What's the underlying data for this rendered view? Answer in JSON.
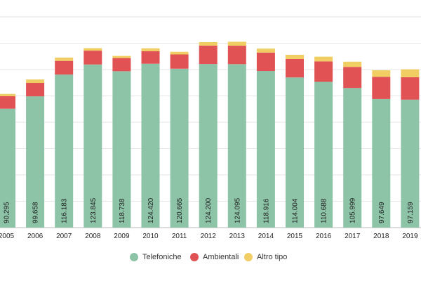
{
  "chart_data": {
    "type": "bar",
    "stacked": true,
    "categories": [
      "2005",
      "2006",
      "2007",
      "2008",
      "2009",
      "2010",
      "2011",
      "2012",
      "2013",
      "2014",
      "2015",
      "2016",
      "2017",
      "2018",
      "2019"
    ],
    "series": [
      {
        "name": "Telefoniche",
        "color": "#8dc3a7",
        "values": [
          90295,
          99658,
          116183,
          123845,
          118738,
          124420,
          120665,
          124200,
          124095,
          118916,
          114004,
          110688,
          105999,
          97649,
          97159
        ],
        "labels": [
          "90.295",
          "99.658",
          "116.183",
          "123.845",
          "118.738",
          "124.420",
          "120.665",
          "124.200",
          "124.095",
          "118.916",
          "114.004",
          "110.688",
          "105.999",
          "97.649",
          "97.159"
        ]
      },
      {
        "name": "Ambientali",
        "color": "#e05254",
        "values": [
          9500,
          10200,
          10400,
          10500,
          10000,
          9500,
          10800,
          14000,
          14000,
          14000,
          14000,
          15500,
          16000,
          16800,
          17000
        ]
      },
      {
        "name": "Altro tipo",
        "color": "#f1ce63",
        "values": [
          1700,
          2600,
          2500,
          1900,
          1600,
          2200,
          2000,
          2600,
          3000,
          3000,
          3200,
          3600,
          4000,
          5000,
          6000
        ]
      }
    ],
    "ylim": [
      0,
      160000
    ],
    "grid": true,
    "legend_position": "bottom-center"
  }
}
